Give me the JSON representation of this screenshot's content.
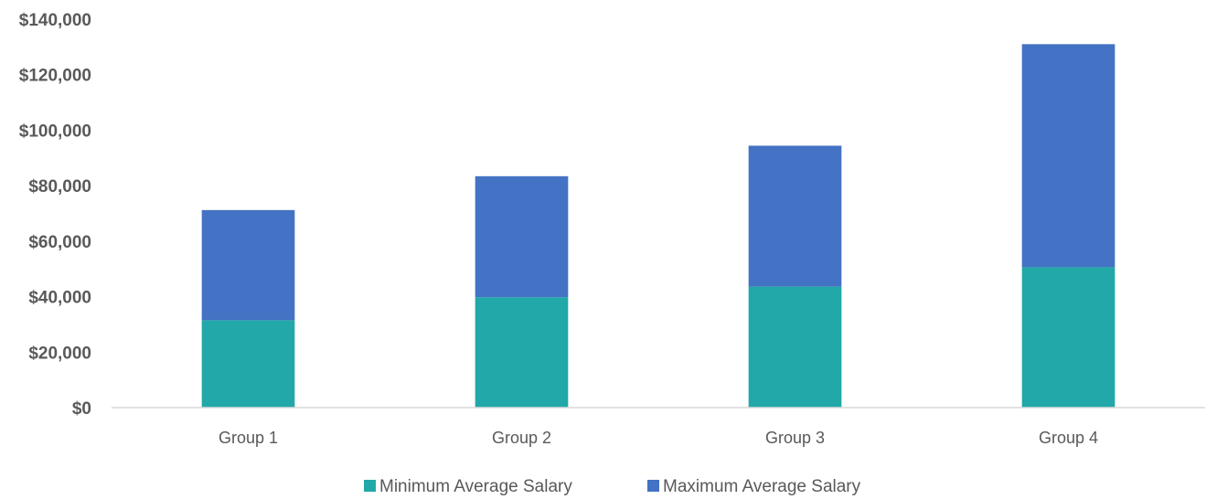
{
  "chart_data": {
    "type": "bar",
    "stacked": true,
    "categories": [
      "Group 1",
      "Group 2",
      "Group 3",
      "Group 4"
    ],
    "series": [
      {
        "name": "Minimum Average Salary",
        "values": [
          31500,
          39800,
          43600,
          50600
        ],
        "color": "#22a8a8"
      },
      {
        "name": "Maximum Average Salary",
        "values": [
          39700,
          43600,
          50800,
          80400
        ],
        "color": "#4472c4"
      }
    ],
    "ylim": [
      0,
      140000
    ],
    "yticks": [
      "$0",
      "$20,000",
      "$40,000",
      "$60,000",
      "$80,000",
      "$100,000",
      "$120,000",
      "$140,000"
    ],
    "title": "",
    "xlabel": "",
    "ylabel": "",
    "grid": false,
    "legend_position": "bottom"
  }
}
